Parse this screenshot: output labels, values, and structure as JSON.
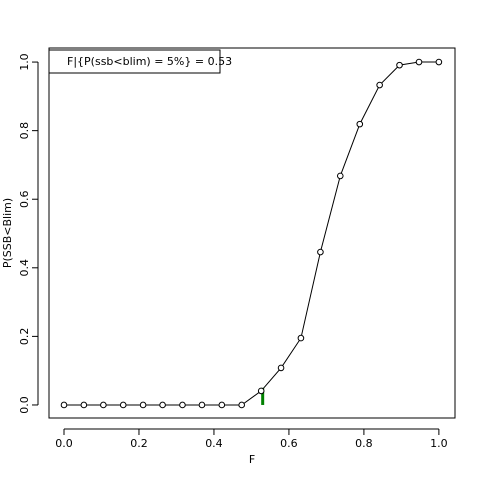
{
  "chart_data": {
    "type": "line",
    "xlabel": "F",
    "ylabel": "P(SSB<Blim)",
    "legend_text": "F|{P(ssb<blim) = 5%} =  0.53",
    "legend_position": "top-left",
    "x": [
      0,
      0.053,
      0.105,
      0.158,
      0.211,
      0.263,
      0.316,
      0.368,
      0.421,
      0.474,
      0.526,
      0.579,
      0.632,
      0.684,
      0.737,
      0.789,
      0.842,
      0.895,
      0.947,
      1
    ],
    "series": [
      {
        "color": "#000000",
        "values": [
          0,
          0,
          0,
          0,
          0,
          0,
          0,
          0,
          0,
          0,
          0.041,
          0.108,
          0.195,
          0.446,
          0.668,
          0.819,
          0.933,
          0.991,
          1,
          1
        ]
      }
    ],
    "reference_line": {
      "x": 0.53,
      "y": [
        0,
        0.05
      ],
      "color": "#008000"
    },
    "xlim": [
      -0.04,
      1.043
    ],
    "ylim": [
      -0.038,
      1.041
    ],
    "xticks": [
      {
        "value": 0,
        "label": "0.0"
      },
      0.2,
      0.4,
      0.6,
      0.8,
      {
        "value": 1,
        "label": "1.0"
      }
    ],
    "yticks": [
      {
        "value": 0,
        "label": "0.0"
      },
      0.2,
      0.4,
      0.6,
      0.8,
      {
        "value": 1,
        "label": "1.0"
      }
    ]
  }
}
